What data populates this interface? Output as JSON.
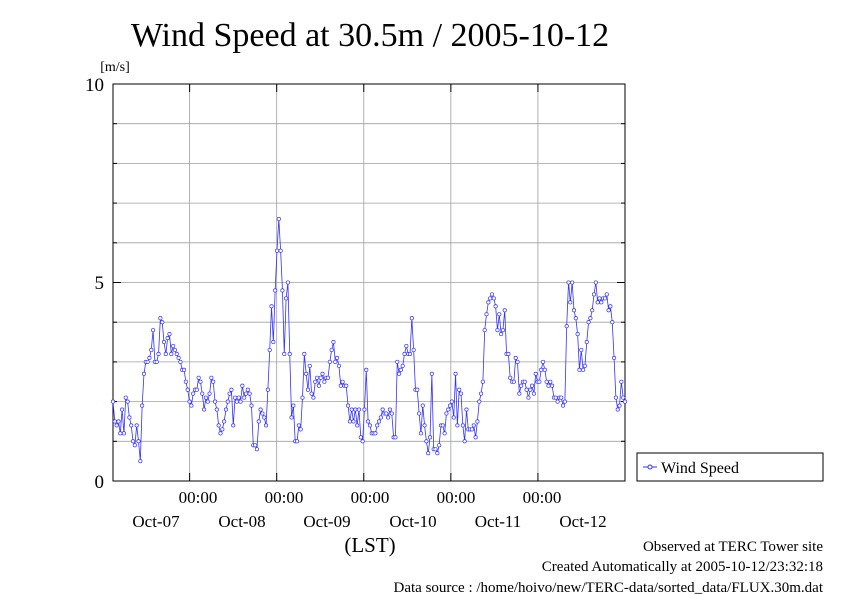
{
  "chart_data": {
    "type": "line",
    "title": "Wind Speed at 30.5m / 2005-10-12",
    "ylabel": "[m/s]",
    "xlabel": "(LST)",
    "ylim": [
      0,
      10
    ],
    "xlim": [
      -1.88,
      4.0
    ],
    "yticks": [
      "0",
      "5",
      "10"
    ],
    "xticks": [
      {
        "x": -1,
        "time": "00:00",
        "date": "Oct-07"
      },
      {
        "x": 0,
        "time": "00:00",
        "date": "Oct-08"
      },
      {
        "x": 1,
        "time": "00:00",
        "date": "Oct-09"
      },
      {
        "x": 2,
        "time": "00:00",
        "date": "Oct-10"
      },
      {
        "x": 3,
        "time": "00:00",
        "date": "Oct-11"
      }
    ],
    "extra_date_labels": [
      {
        "x": 4,
        "date": "Oct-12"
      }
    ],
    "grid": true,
    "legend_position": "right",
    "series": [
      {
        "name": "Wind Speed",
        "color": "#3333ff",
        "values": [
          2.0,
          1.5,
          1.4,
          1.5,
          1.2,
          1.8,
          1.2,
          2.1,
          2.0,
          1.6,
          1.4,
          1.0,
          0.9,
          1.4,
          1.0,
          0.5,
          1.9,
          2.7,
          3.0,
          3.0,
          3.1,
          3.3,
          3.8,
          3.0,
          3.0,
          3.2,
          4.1,
          4.0,
          3.5,
          3.2,
          3.6,
          3.7,
          3.2,
          3.4,
          3.3,
          3.2,
          3.1,
          3.0,
          2.8,
          2.8,
          2.5,
          2.3,
          2.0,
          1.9,
          2.2,
          2.3,
          2.3,
          2.6,
          2.5,
          2.2,
          1.8,
          2.1,
          2.0,
          2.2,
          2.6,
          2.5,
          2.0,
          1.8,
          1.4,
          1.2,
          1.3,
          1.5,
          1.8,
          2.0,
          2.2,
          2.3,
          1.4,
          2.1,
          2.0,
          2.1,
          2.0,
          2.4,
          2.1,
          2.2,
          2.3,
          2.2,
          1.9,
          0.9,
          0.9,
          0.8,
          1.5,
          1.8,
          1.7,
          1.6,
          1.4,
          2.3,
          3.3,
          4.4,
          3.5,
          4.8,
          5.8,
          6.6,
          5.8,
          4.8,
          3.2,
          4.6,
          5.0,
          3.2,
          1.6,
          1.9,
          1.0,
          1.0,
          1.4,
          1.3,
          2.1,
          3.2,
          2.7,
          2.3,
          2.9,
          2.2,
          2.1,
          2.5,
          2.6,
          2.4,
          2.6,
          2.7,
          2.5,
          2.6,
          2.6,
          3.0,
          3.3,
          3.5,
          3.0,
          3.1,
          2.9,
          2.4,
          2.5,
          2.4,
          2.4,
          1.9,
          1.5,
          1.8,
          1.5,
          1.8,
          1.4,
          1.8,
          1.1,
          1.0,
          1.8,
          2.8,
          1.5,
          1.4,
          1.2,
          1.2,
          1.2,
          1.4,
          1.5,
          1.6,
          1.8,
          1.7,
          1.7,
          1.6,
          1.8,
          1.7,
          1.1,
          1.1,
          3.0,
          2.7,
          2.8,
          2.9,
          3.2,
          3.4,
          3.2,
          3.2,
          4.1,
          3.3,
          2.3,
          2.3,
          1.7,
          1.2,
          1.9,
          1.4,
          1.0,
          0.7,
          1.1,
          2.7,
          0.8,
          0.8,
          0.7,
          0.9,
          1.4,
          1.4,
          1.2,
          1.7,
          1.8,
          1.9,
          2.0,
          1.6,
          2.7,
          1.4,
          2.3,
          2.2,
          1.4,
          1.0,
          1.8,
          1.3,
          1.3,
          1.3,
          1.4,
          1.1,
          1.5,
          2.0,
          2.2,
          2.5,
          3.8,
          4.2,
          4.5,
          4.6,
          4.7,
          4.6,
          4.4,
          3.8,
          4.2,
          3.7,
          3.8,
          4.3,
          3.2,
          3.2,
          2.6,
          2.5,
          2.5,
          3.1,
          3.0,
          2.2,
          2.4,
          2.5,
          2.5,
          2.3,
          2.1,
          2.3,
          2.4,
          2.2,
          2.7,
          2.5,
          2.5,
          2.8,
          3.0,
          2.8,
          2.5,
          2.4,
          2.5,
          2.4,
          2.1,
          2.1,
          2.0,
          2.1,
          2.1,
          1.9,
          2.0,
          3.9,
          5.0,
          4.5,
          5.0,
          4.3,
          4.1,
          3.7,
          2.8,
          3.3,
          2.8,
          2.9,
          3.5,
          4.0,
          4.1,
          4.3,
          4.7,
          5.0,
          4.5,
          4.6,
          4.5,
          4.6,
          4.6,
          4.7,
          4.3,
          4.4,
          4.0,
          3.1,
          2.1,
          1.8,
          1.9,
          2.5,
          2.1,
          2.0
        ]
      }
    ]
  },
  "footer": {
    "observed": "Observed at TERC Tower site",
    "created": "Created Automatically at 2005-10-12/23:32:18",
    "source": "Data source : /home/hoivo/new/TERC-data/sorted_data/FLUX.30m.dat"
  }
}
